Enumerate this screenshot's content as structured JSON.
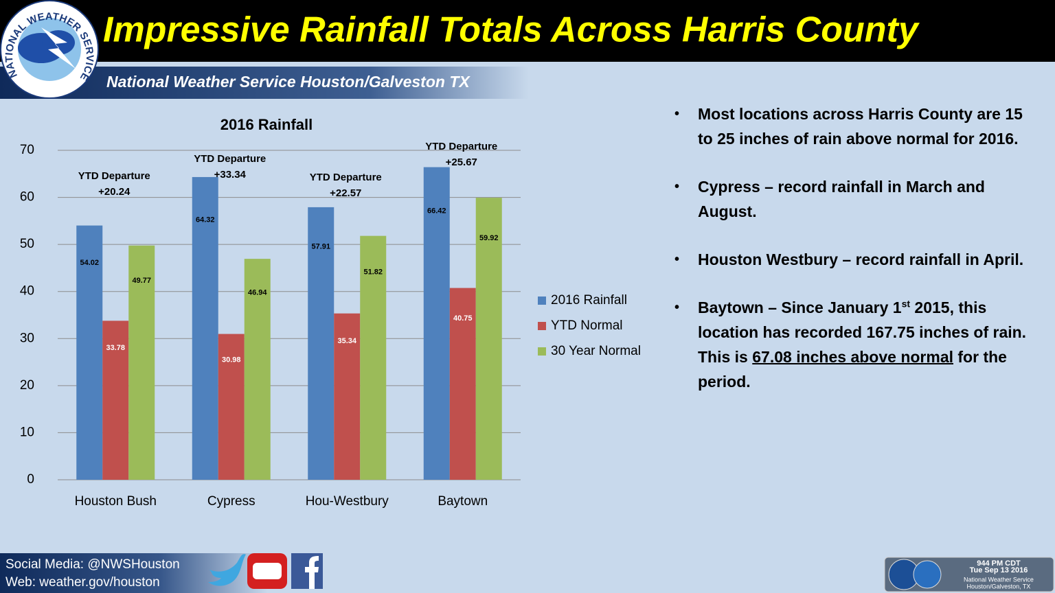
{
  "header": {
    "title": "Impressive Rainfall Totals Across Harris County",
    "subtitle": "National Weather Service Houston/Galveston TX",
    "logo_text": "NATIONAL WEATHER SERVICE"
  },
  "chart_data": {
    "type": "bar",
    "title": "2016 Rainfall",
    "categories": [
      "Houston Bush",
      "Cypress",
      "Hou-Westbury",
      "Baytown"
    ],
    "series": [
      {
        "name": "2016 Rainfall",
        "color": "#4f81bd",
        "values": [
          54.02,
          64.32,
          57.91,
          66.42
        ]
      },
      {
        "name": "YTD Normal",
        "color": "#c0504d",
        "values": [
          33.78,
          30.98,
          35.34,
          40.75
        ]
      },
      {
        "name": "30 Year Normal",
        "color": "#9bbb59",
        "values": [
          49.77,
          46.94,
          51.82,
          59.92
        ]
      }
    ],
    "ylim": [
      0,
      70
    ],
    "yticks": [
      0,
      10,
      20,
      30,
      40,
      50,
      60,
      70
    ],
    "grid": true,
    "legend": "right",
    "annotations": [
      {
        "label": "YTD Departure",
        "value": "+20.24"
      },
      {
        "label": "YTD Departure",
        "value": "+33.34"
      },
      {
        "label": "YTD Departure",
        "value": "+22.57"
      },
      {
        "label": "YTD Departure",
        "value": "+25.67"
      }
    ]
  },
  "bullets": [
    {
      "text": "Most locations across Harris County are 15 to 25 inches of rain above normal for 2016."
    },
    {
      "text": "Cypress – record rainfall in March and August."
    },
    {
      "text": "Houston Westbury – record rainfall in April."
    },
    {
      "before": "Baytown – Since January 1",
      "sup": "st",
      "middle": " 2015, this location has recorded 167.75 inches of rain.  This is ",
      "underline": "67.08 inches above normal",
      "after": " for the period."
    }
  ],
  "footer": {
    "social": "Social Media: @NWSHouston",
    "web": "Web: weather.gov/houston",
    "stamp": [
      "944 PM CDT",
      "Tue Sep 13 2016",
      "National Weather Service",
      "Houston/Galveston, TX"
    ]
  }
}
